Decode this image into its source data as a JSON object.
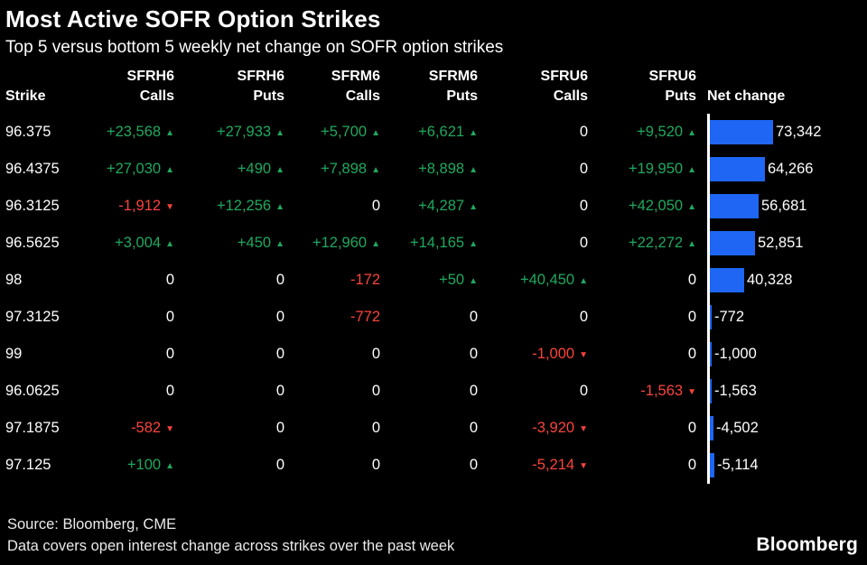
{
  "title": "Most Active SOFR Option Strikes",
  "subtitle": "Top 5 versus bottom 5 weekly net change on SOFR option strikes",
  "colors": {
    "background": "#000000",
    "text": "#ffffff",
    "positive": "#1fa95f",
    "negative": "#fb433c",
    "bar": "#1e66f3"
  },
  "table": {
    "strike_header": "Strike",
    "net_change_header": "Net change",
    "column_groups": [
      {
        "group": "SFRH6",
        "sub": "Calls"
      },
      {
        "group": "SFRH6",
        "sub": "Puts"
      },
      {
        "group": "SFRM6",
        "sub": "Calls"
      },
      {
        "group": "SFRM6",
        "sub": "Puts"
      },
      {
        "group": "SFRU6",
        "sub": "Calls"
      },
      {
        "group": "SFRU6",
        "sub": "Puts"
      }
    ],
    "rows": [
      {
        "strike": "96.375",
        "cells": [
          {
            "text": "+23,568",
            "dir": "up"
          },
          {
            "text": "+27,933",
            "dir": "up"
          },
          {
            "text": "+5,700",
            "dir": "up"
          },
          {
            "text": "+6,621",
            "dir": "up"
          },
          {
            "text": "0",
            "dir": null
          },
          {
            "text": "+9,520",
            "dir": "up"
          }
        ],
        "net_change": 73342,
        "net_change_label": "73,342"
      },
      {
        "strike": "96.4375",
        "cells": [
          {
            "text": "+27,030",
            "dir": "up"
          },
          {
            "text": "+490",
            "dir": "up"
          },
          {
            "text": "+7,898",
            "dir": "up"
          },
          {
            "text": "+8,898",
            "dir": "up"
          },
          {
            "text": "0",
            "dir": null
          },
          {
            "text": "+19,950",
            "dir": "up"
          }
        ],
        "net_change": 64266,
        "net_change_label": "64,266"
      },
      {
        "strike": "96.3125",
        "cells": [
          {
            "text": "-1,912",
            "dir": "down"
          },
          {
            "text": "+12,256",
            "dir": "up"
          },
          {
            "text": "0",
            "dir": null
          },
          {
            "text": "+4,287",
            "dir": "up"
          },
          {
            "text": "0",
            "dir": null
          },
          {
            "text": "+42,050",
            "dir": "up"
          }
        ],
        "net_change": 56681,
        "net_change_label": "56,681"
      },
      {
        "strike": "96.5625",
        "cells": [
          {
            "text": "+3,004",
            "dir": "up"
          },
          {
            "text": "+450",
            "dir": "up"
          },
          {
            "text": "+12,960",
            "dir": "up"
          },
          {
            "text": "+14,165",
            "dir": "up"
          },
          {
            "text": "0",
            "dir": null
          },
          {
            "text": "+22,272",
            "dir": "up"
          }
        ],
        "net_change": 52851,
        "net_change_label": "52,851"
      },
      {
        "strike": "98",
        "cells": [
          {
            "text": "0",
            "dir": null
          },
          {
            "text": "0",
            "dir": null
          },
          {
            "text": "-172",
            "dir": null
          },
          {
            "text": "+50",
            "dir": "up"
          },
          {
            "text": "+40,450",
            "dir": "up"
          },
          {
            "text": "0",
            "dir": null
          }
        ],
        "net_change": 40328,
        "net_change_label": "40,328"
      },
      {
        "strike": "97.3125",
        "cells": [
          {
            "text": "0",
            "dir": null
          },
          {
            "text": "0",
            "dir": null
          },
          {
            "text": "-772",
            "dir": null
          },
          {
            "text": "0",
            "dir": null
          },
          {
            "text": "0",
            "dir": null
          },
          {
            "text": "0",
            "dir": null
          }
        ],
        "net_change": -772,
        "net_change_label": "-772"
      },
      {
        "strike": "99",
        "cells": [
          {
            "text": "0",
            "dir": null
          },
          {
            "text": "0",
            "dir": null
          },
          {
            "text": "0",
            "dir": null
          },
          {
            "text": "0",
            "dir": null
          },
          {
            "text": "-1,000",
            "dir": "down"
          },
          {
            "text": "0",
            "dir": null
          }
        ],
        "net_change": -1000,
        "net_change_label": "-1,000"
      },
      {
        "strike": "96.0625",
        "cells": [
          {
            "text": "0",
            "dir": null
          },
          {
            "text": "0",
            "dir": null
          },
          {
            "text": "0",
            "dir": null
          },
          {
            "text": "0",
            "dir": null
          },
          {
            "text": "0",
            "dir": null
          },
          {
            "text": "-1,563",
            "dir": "down"
          }
        ],
        "net_change": -1563,
        "net_change_label": "-1,563"
      },
      {
        "strike": "97.1875",
        "cells": [
          {
            "text": "-582",
            "dir": "down"
          },
          {
            "text": "0",
            "dir": null
          },
          {
            "text": "0",
            "dir": null
          },
          {
            "text": "0",
            "dir": null
          },
          {
            "text": "-3,920",
            "dir": "down"
          },
          {
            "text": "0",
            "dir": null
          }
        ],
        "net_change": -4502,
        "net_change_label": "-4,502"
      },
      {
        "strike": "97.125",
        "cells": [
          {
            "text": "+100",
            "dir": "up"
          },
          {
            "text": "0",
            "dir": null
          },
          {
            "text": "0",
            "dir": null
          },
          {
            "text": "0",
            "dir": null
          },
          {
            "text": "-5,214",
            "dir": "down"
          },
          {
            "text": "0",
            "dir": null
          }
        ],
        "net_change": -5114,
        "net_change_label": "-5,114"
      }
    ]
  },
  "footer": {
    "source": "Source: Bloomberg, CME",
    "note": "Data covers open interest change across strikes over the past week",
    "logo": "Bloomberg"
  },
  "chart_data": {
    "type": "bar",
    "title": "Most Active SOFR Option Strikes",
    "subtitle": "Top 5 versus bottom 5 weekly net change on SOFR option strikes",
    "categories": [
      "96.375",
      "96.4375",
      "96.3125",
      "96.5625",
      "98",
      "97.3125",
      "99",
      "96.0625",
      "97.1875",
      "97.125"
    ],
    "series": [
      {
        "name": "SFRH6 Calls",
        "values": [
          23568,
          27030,
          -1912,
          3004,
          0,
          0,
          0,
          0,
          -582,
          100
        ]
      },
      {
        "name": "SFRH6 Puts",
        "values": [
          27933,
          490,
          12256,
          450,
          0,
          0,
          0,
          0,
          0,
          0
        ]
      },
      {
        "name": "SFRM6 Calls",
        "values": [
          5700,
          7898,
          0,
          12960,
          -172,
          -772,
          0,
          0,
          0,
          0
        ]
      },
      {
        "name": "SFRM6 Puts",
        "values": [
          6621,
          8898,
          4287,
          14165,
          50,
          0,
          0,
          0,
          0,
          0
        ]
      },
      {
        "name": "SFRU6 Calls",
        "values": [
          0,
          0,
          0,
          0,
          40450,
          0,
          -1000,
          0,
          -3920,
          -5214
        ]
      },
      {
        "name": "SFRU6 Puts",
        "values": [
          9520,
          19950,
          42050,
          22272,
          0,
          0,
          0,
          -1563,
          0,
          0
        ]
      },
      {
        "name": "Net change",
        "values": [
          73342,
          64266,
          56681,
          52851,
          40328,
          -772,
          -1000,
          -1563,
          -4502,
          -5114
        ]
      }
    ],
    "bar_series_plotted": "Net change",
    "bar_orientation": "horizontal",
    "bar_color": "#1e66f3",
    "xlabel": "",
    "ylabel": "Strike",
    "grid": false,
    "legend_position": "none",
    "source": "Bloomberg, CME"
  }
}
